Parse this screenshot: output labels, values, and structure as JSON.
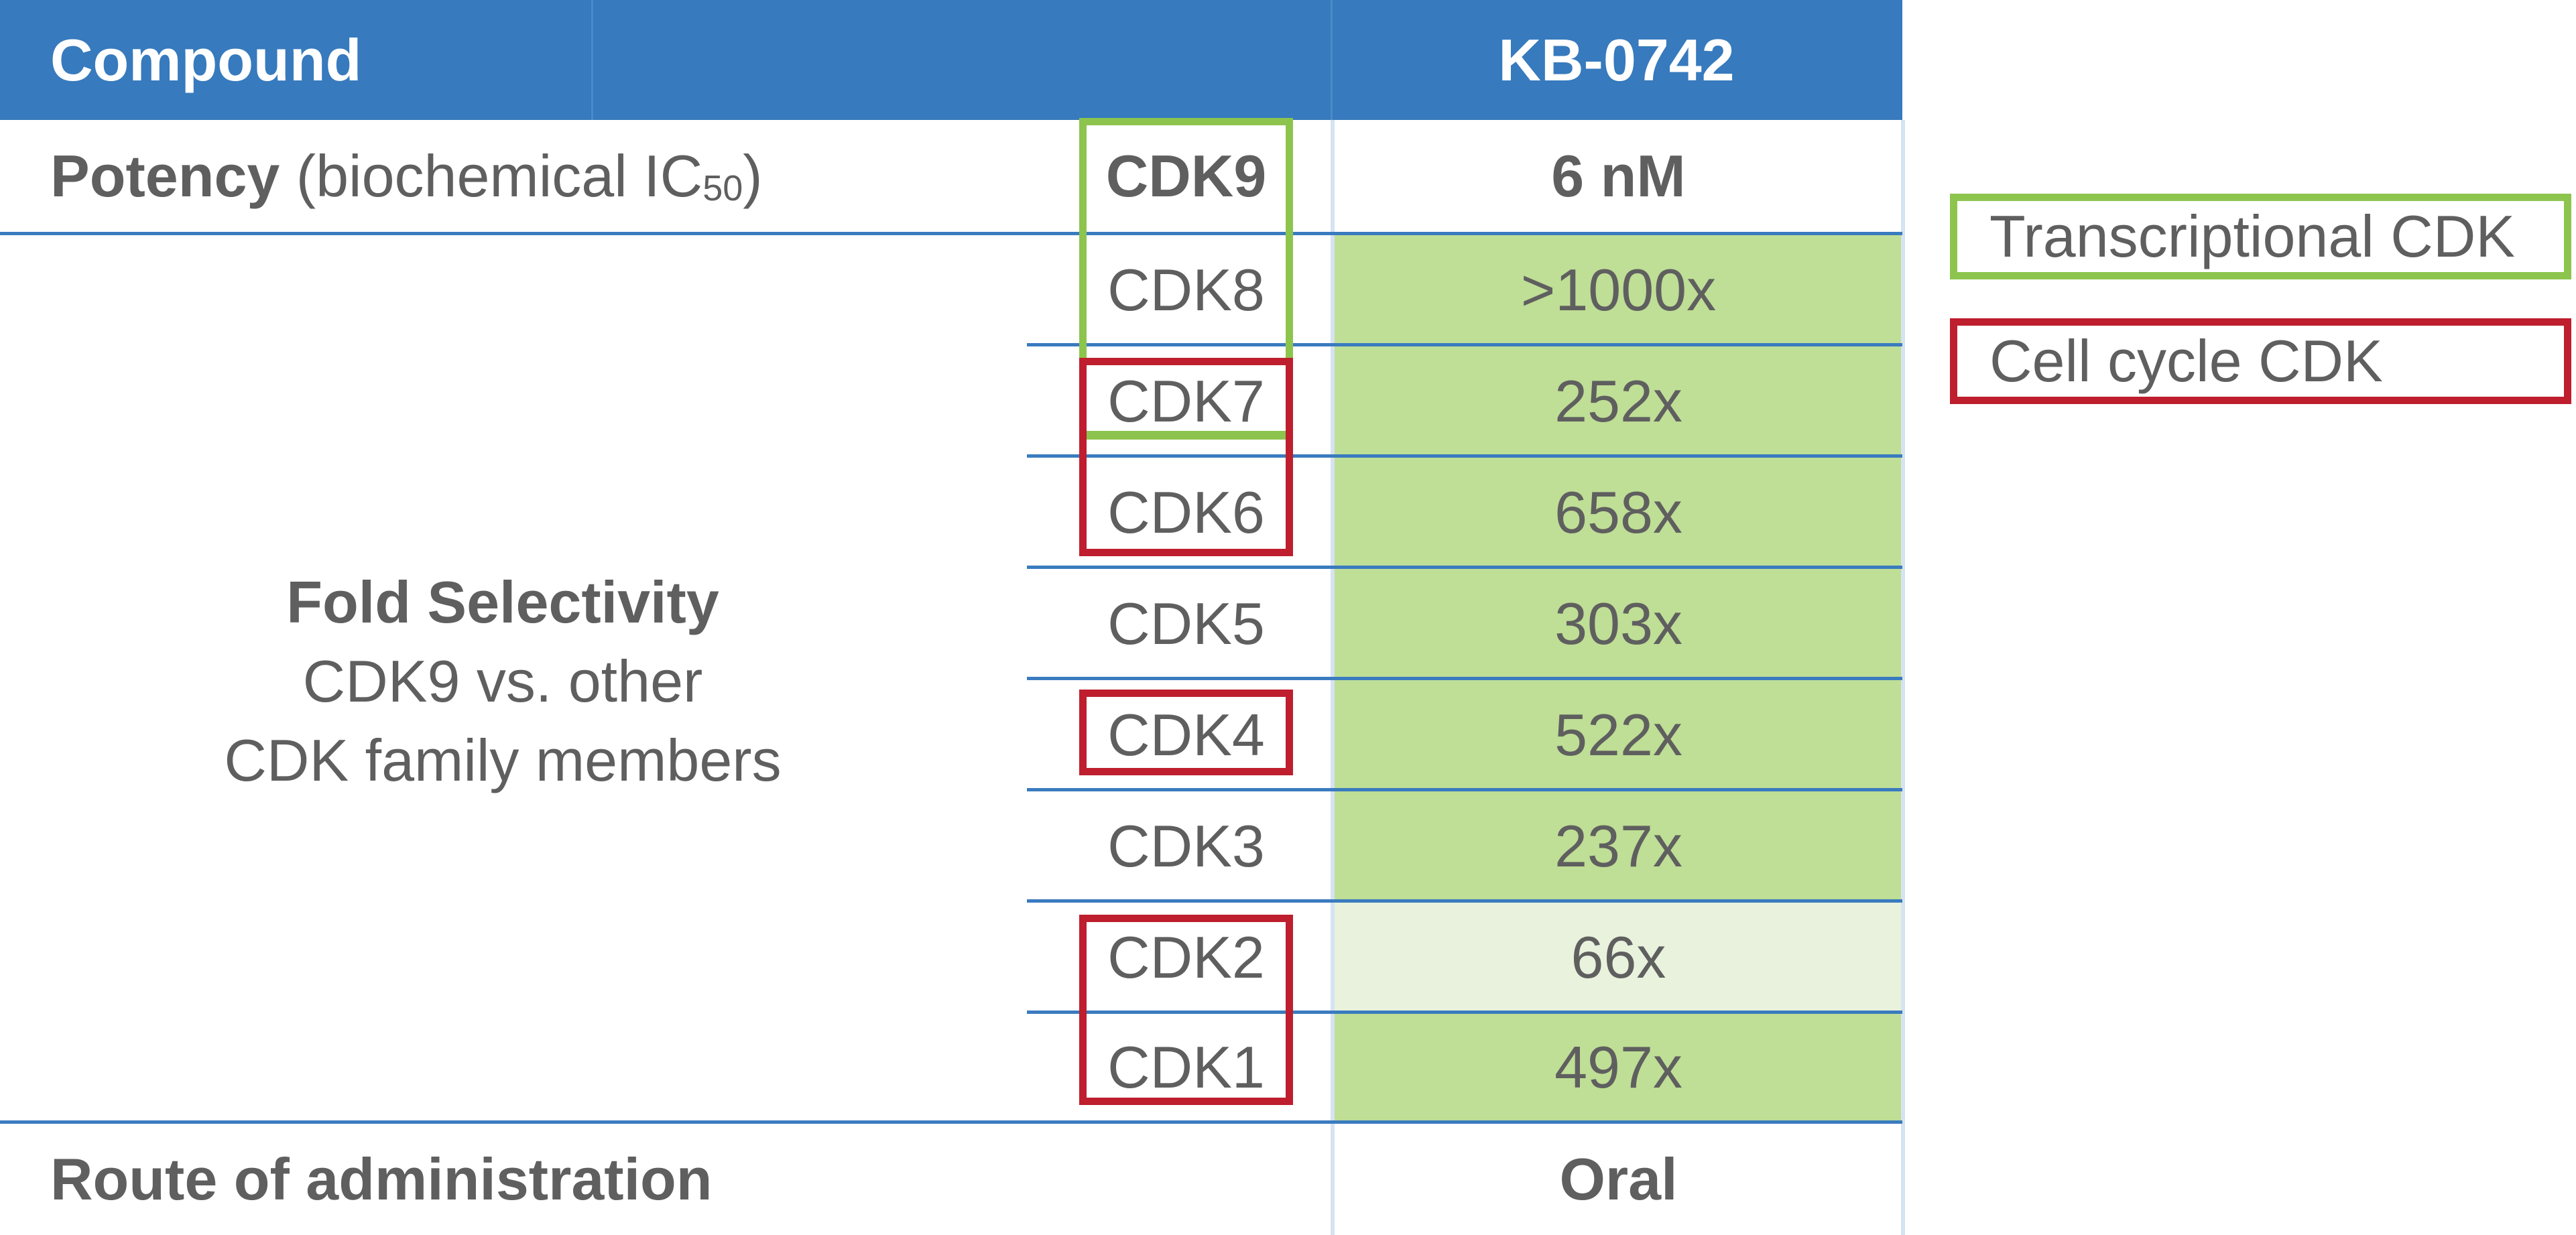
{
  "header": {
    "compound_label": "Compound",
    "compound_name": "KB-0742"
  },
  "potency": {
    "label_bold": "Potency",
    "label_rest": "(biochemical IC",
    "subscript": "50",
    "label_close": ")",
    "target": "CDK9",
    "value": "6 nM"
  },
  "selectivity": {
    "title": "Fold Selectivity",
    "subtitle_1": "CDK9 vs. other",
    "subtitle_2": "CDK family members",
    "rows": [
      {
        "cdk": "CDK8",
        "fold": ">1000x",
        "group": "transcriptional"
      },
      {
        "cdk": "CDK7",
        "fold": "252x",
        "group": "transcriptional, cell cycle"
      },
      {
        "cdk": "CDK6",
        "fold": "658x",
        "group": "cell cycle"
      },
      {
        "cdk": "CDK5",
        "fold": "303x",
        "group": ""
      },
      {
        "cdk": "CDK4",
        "fold": "522x",
        "group": "cell cycle"
      },
      {
        "cdk": "CDK3",
        "fold": "237x",
        "group": ""
      },
      {
        "cdk": "CDK2",
        "fold": "66x",
        "group": "cell cycle"
      },
      {
        "cdk": "CDK1",
        "fold": "497x",
        "group": "cell cycle"
      }
    ]
  },
  "route": {
    "label": "Route of administration",
    "value": "Oral"
  },
  "legend": {
    "transcriptional": "Transcriptional CDK",
    "cell_cycle": "Cell cycle CDK"
  },
  "colors": {
    "header": "#377abd",
    "transcriptional": "#8dc44e",
    "cell_cycle": "#be1e2d",
    "fill": "#bfde96",
    "fill_light": "#e8f2dc"
  }
}
